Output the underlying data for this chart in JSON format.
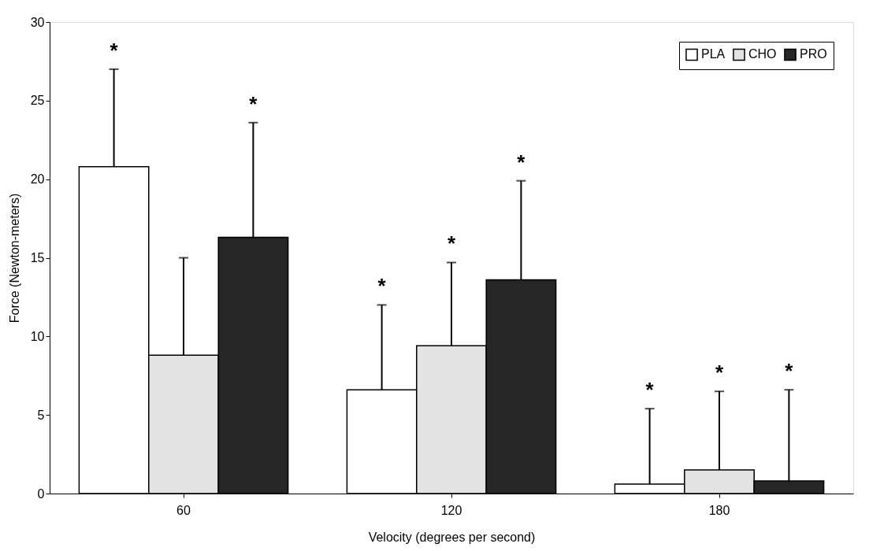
{
  "chart_data": {
    "type": "bar",
    "xlabel": "Velocity (degrees per second)",
    "ylabel": "Force (Newton-meters)",
    "categories": [
      "60",
      "120",
      "180"
    ],
    "series": [
      {
        "name": "PLA",
        "color": "#ffffff",
        "values": [
          20.8,
          6.6,
          0.6
        ],
        "errors": [
          [
            20.8,
            27.0
          ],
          [
            6.6,
            12.0
          ],
          [
            0.6,
            5.4
          ]
        ]
      },
      {
        "name": "CHO",
        "color": "#e3e3e3",
        "values": [
          8.8,
          9.4,
          1.5
        ],
        "errors": [
          [
            8.8,
            15.0
          ],
          [
            9.4,
            14.7
          ],
          [
            1.5,
            6.5
          ]
        ]
      },
      {
        "name": "PRO",
        "color": "#262626",
        "values": [
          16.3,
          13.6,
          0.8
        ],
        "errors": [
          [
            16.3,
            23.6
          ],
          [
            13.6,
            19.9
          ],
          [
            0.8,
            6.6
          ]
        ]
      }
    ],
    "annotations": [
      "*",
      "*",
      "*",
      "*",
      "*",
      "*",
      "*",
      "*"
    ],
    "ylim": [
      0,
      30
    ],
    "yticks": [
      0,
      5,
      10,
      15,
      20,
      25,
      30
    ],
    "grid": false,
    "legend": "top right"
  }
}
